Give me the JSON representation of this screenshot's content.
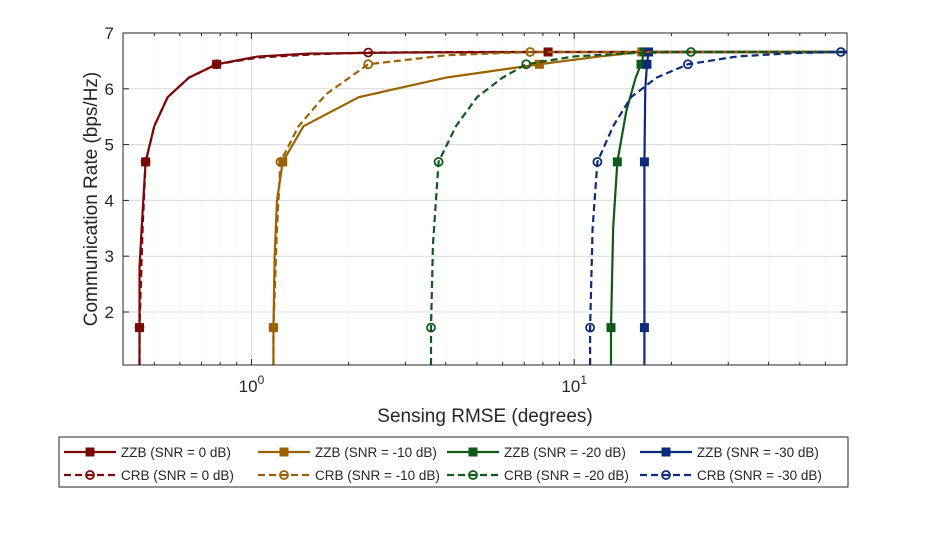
{
  "chart_data": {
    "type": "line",
    "title": "",
    "xlabel": "Sensing RMSE (degrees)",
    "ylabel": "Communication Rate (bps/Hz)",
    "xscale": "log",
    "xlim": [
      0.4,
      70
    ],
    "ylim": [
      1.05,
      7
    ],
    "grid": true,
    "legend_position": "bottom-outside",
    "x_ticks": [
      {
        "value": 1,
        "base": "10",
        "exp": "0"
      },
      {
        "value": 10,
        "base": "10",
        "exp": "1"
      }
    ],
    "y_ticks": [
      {
        "value": 2,
        "label": "2"
      },
      {
        "value": 3,
        "label": "3"
      },
      {
        "value": 4,
        "label": "4"
      },
      {
        "value": 5,
        "label": "5"
      },
      {
        "value": 6,
        "label": "6"
      },
      {
        "value": 7,
        "label": "7"
      }
    ],
    "series": [
      {
        "name": "ZZB (SNR = 0 dB)",
        "color": "#7a0a0a",
        "dash": "solid",
        "marker": "square",
        "points": [
          [
            0.45,
            1.05
          ],
          [
            0.45,
            1.72
          ],
          [
            0.45,
            2.8
          ],
          [
            0.46,
            3.8
          ],
          [
            0.47,
            4.69
          ],
          [
            0.5,
            5.33
          ],
          [
            0.55,
            5.85
          ],
          [
            0.64,
            6.2
          ],
          [
            0.78,
            6.44
          ],
          [
            1.05,
            6.58
          ],
          [
            1.5,
            6.63
          ],
          [
            3,
            6.65
          ],
          [
            8,
            6.66
          ],
          [
            16,
            6.66
          ],
          [
            70,
            6.66
          ]
        ],
        "markers": [
          [
            0.45,
            1.72
          ],
          [
            0.47,
            4.69
          ],
          [
            0.78,
            6.44
          ],
          [
            8.3,
            6.66
          ],
          [
            16.5,
            6.66
          ]
        ]
      },
      {
        "name": "CRB (SNR = 0 dB)",
        "color": "#7a0a0a",
        "dash": "dashed",
        "marker": "circle",
        "points": [
          [
            0.45,
            1.05
          ],
          [
            0.45,
            1.72
          ],
          [
            0.46,
            3.5
          ],
          [
            0.47,
            4.69
          ],
          [
            0.5,
            5.33
          ],
          [
            0.55,
            5.85
          ],
          [
            0.64,
            6.2
          ],
          [
            0.78,
            6.44
          ],
          [
            1.05,
            6.56
          ],
          [
            1.6,
            6.62
          ],
          [
            2.3,
            6.65
          ],
          [
            5,
            6.66
          ],
          [
            70,
            6.66
          ]
        ],
        "markers": [
          [
            0.45,
            1.72
          ],
          [
            0.47,
            4.69
          ],
          [
            0.78,
            6.44
          ],
          [
            2.3,
            6.65
          ]
        ]
      },
      {
        "name": "ZZB (SNR = -10 dB)",
        "color": "#9a6200",
        "dash": "solid",
        "marker": "square",
        "points": [
          [
            1.17,
            1.05
          ],
          [
            1.17,
            1.72
          ],
          [
            1.18,
            3.0
          ],
          [
            1.2,
            4.0
          ],
          [
            1.25,
            4.69
          ],
          [
            1.45,
            5.33
          ],
          [
            2.15,
            5.85
          ],
          [
            4,
            6.2
          ],
          [
            7.8,
            6.44
          ],
          [
            12,
            6.58
          ],
          [
            16.2,
            6.66
          ],
          [
            70,
            6.66
          ]
        ],
        "markers": [
          [
            1.17,
            1.72
          ],
          [
            1.25,
            4.69
          ],
          [
            7.8,
            6.44
          ],
          [
            16.2,
            6.66
          ]
        ]
      },
      {
        "name": "CRB (SNR = -10 dB)",
        "color": "#9a6200",
        "dash": "dashed",
        "marker": "circle",
        "points": [
          [
            1.17,
            1.05
          ],
          [
            1.17,
            1.72
          ],
          [
            1.2,
            3.5
          ],
          [
            1.23,
            4.69
          ],
          [
            1.4,
            5.33
          ],
          [
            1.7,
            5.9
          ],
          [
            2.3,
            6.44
          ],
          [
            4,
            6.6
          ],
          [
            7.3,
            6.66
          ],
          [
            70,
            6.66
          ]
        ],
        "markers": [
          [
            1.17,
            1.72
          ],
          [
            1.23,
            4.69
          ],
          [
            2.3,
            6.44
          ],
          [
            7.3,
            6.66
          ]
        ]
      },
      {
        "name": "ZZB (SNR = -20 dB)",
        "color": "#0f5a1a",
        "dash": "solid",
        "marker": "square",
        "points": [
          [
            13,
            1.05
          ],
          [
            13,
            1.72
          ],
          [
            13.2,
            3.5
          ],
          [
            13.6,
            4.69
          ],
          [
            14.5,
            5.6
          ],
          [
            15.5,
            6.2
          ],
          [
            16.1,
            6.44
          ],
          [
            16.5,
            6.66
          ],
          [
            70,
            6.66
          ]
        ],
        "markers": [
          [
            13,
            1.72
          ],
          [
            13.6,
            4.69
          ],
          [
            16.1,
            6.44
          ],
          [
            16.5,
            6.66
          ]
        ]
      },
      {
        "name": "CRB (SNR = -20 dB)",
        "color": "#0f5a1a",
        "dash": "dashed",
        "marker": "circle",
        "points": [
          [
            3.6,
            1.05
          ],
          [
            3.6,
            1.72
          ],
          [
            3.65,
            3.2
          ],
          [
            3.8,
            4.69
          ],
          [
            4.3,
            5.33
          ],
          [
            5,
            5.85
          ],
          [
            6,
            6.2
          ],
          [
            7.1,
            6.44
          ],
          [
            10,
            6.58
          ],
          [
            15,
            6.64
          ],
          [
            23,
            6.66
          ],
          [
            70,
            6.66
          ]
        ],
        "markers": [
          [
            3.6,
            1.72
          ],
          [
            3.8,
            4.69
          ],
          [
            7.1,
            6.44
          ],
          [
            23,
            6.66
          ]
        ]
      },
      {
        "name": "ZZB (SNR = -30 dB)",
        "color": "#0c2b7a",
        "dash": "solid",
        "marker": "square",
        "points": [
          [
            16.5,
            1.05
          ],
          [
            16.5,
            1.72
          ],
          [
            16.5,
            4.69
          ],
          [
            16.6,
            6.0
          ],
          [
            16.8,
            6.44
          ],
          [
            17,
            6.66
          ],
          [
            70,
            6.66
          ]
        ],
        "markers": [
          [
            16.5,
            1.72
          ],
          [
            16.5,
            4.69
          ],
          [
            16.8,
            6.44
          ],
          [
            17,
            6.66
          ]
        ]
      },
      {
        "name": "CRB (SNR = -30 dB)",
        "color": "#0c2b7a",
        "dash": "dashed",
        "marker": "circle",
        "points": [
          [
            11.2,
            1.05
          ],
          [
            11.2,
            1.72
          ],
          [
            11.4,
            3.5
          ],
          [
            11.8,
            4.69
          ],
          [
            13.2,
            5.33
          ],
          [
            15,
            5.85
          ],
          [
            18,
            6.2
          ],
          [
            22.5,
            6.44
          ],
          [
            32,
            6.58
          ],
          [
            48,
            6.64
          ],
          [
            67,
            6.66
          ],
          [
            70,
            6.66
          ]
        ],
        "markers": [
          [
            11.2,
            1.72
          ],
          [
            11.8,
            4.69
          ],
          [
            22.5,
            6.44
          ],
          [
            67,
            6.66
          ]
        ]
      }
    ],
    "legend": {
      "rows": [
        [
          "ZZB (SNR = 0 dB)",
          "ZZB (SNR = -10 dB)",
          "ZZB (SNR = -20 dB)",
          "ZZB (SNR = -30 dB)"
        ],
        [
          "CRB (SNR = 0 dB)",
          "CRB (SNR = -10 dB)",
          "CRB (SNR = -20 dB)",
          "CRB (SNR = -30 dB)"
        ]
      ]
    }
  }
}
